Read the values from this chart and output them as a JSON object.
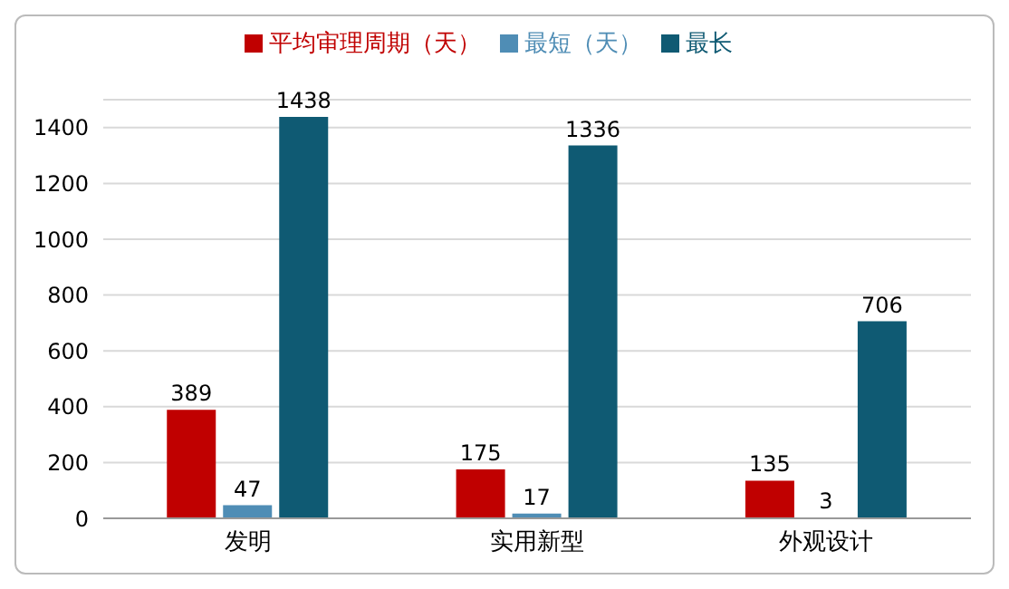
{
  "chart_data": {
    "type": "bar",
    "categories": [
      "发明",
      "实用新型",
      "外观设计"
    ],
    "series": [
      {
        "name": "平均审理周期（天）",
        "color": "#c00000",
        "values": [
          389,
          175,
          135
        ]
      },
      {
        "name": "最短（天）",
        "color": "#4f8db5",
        "values": [
          47,
          17,
          3
        ]
      },
      {
        "name": "最长",
        "color": "#0f5a73",
        "values": [
          1438,
          1336,
          706
        ]
      }
    ],
    "ylim": [
      0,
      1500
    ],
    "yticks": [
      0,
      200,
      400,
      600,
      800,
      1000,
      1200,
      1400
    ],
    "grid": "y",
    "legend": "top",
    "data_labels": true
  }
}
